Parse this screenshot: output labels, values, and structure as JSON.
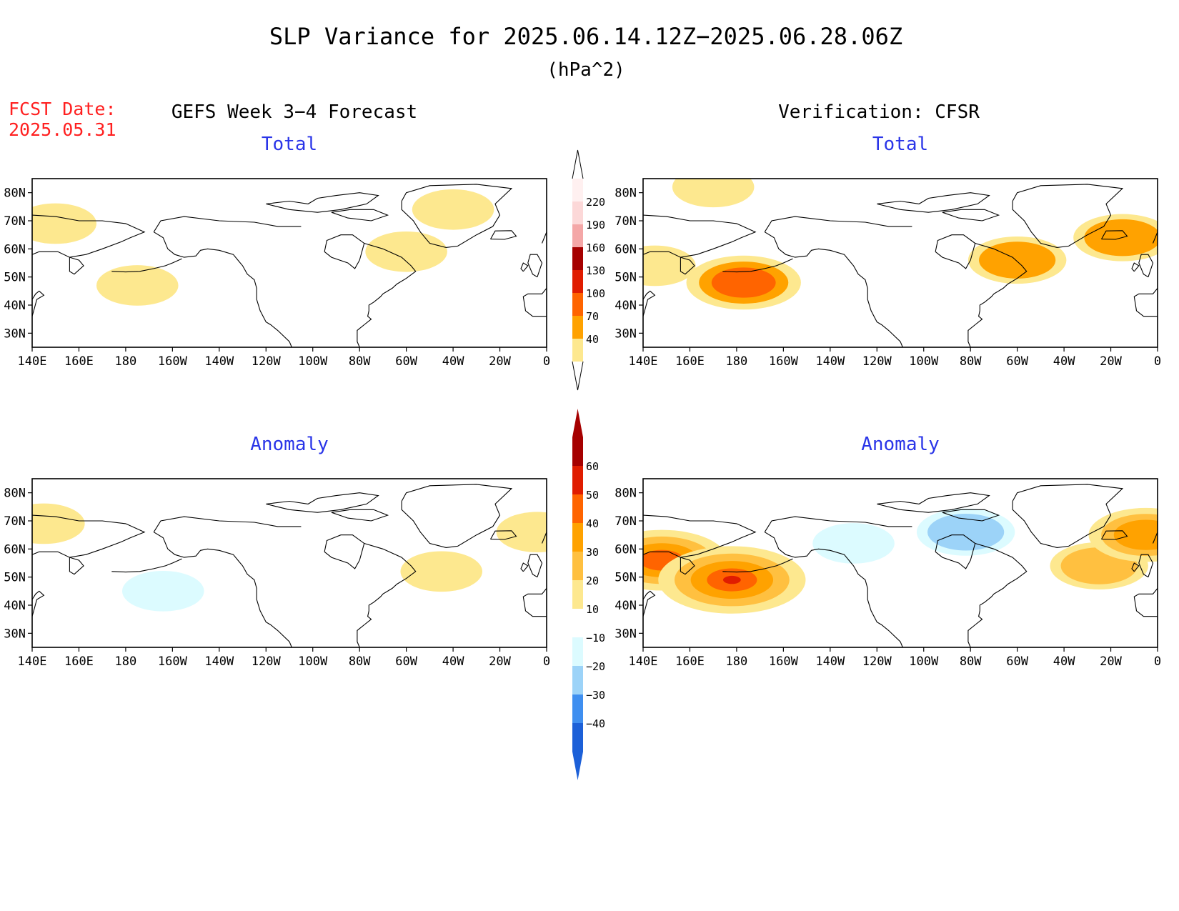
{
  "header": {
    "title": "SLP Variance for 2025.06.14.12Z−2025.06.28.06Z",
    "units": "(hPa^2)",
    "fcst_label": "FCST Date:",
    "fcst_date": "2025.05.31",
    "left_column_title": "GEFS Week 3−4 Forecast",
    "right_column_title": "Verification: CFSR"
  },
  "colors": {
    "title_text": "#000000",
    "fcst_text": "#ff2020",
    "panel_label_text": "#2a35e8",
    "coastline": "#000000"
  },
  "panels": [
    {
      "id": "forecast-total",
      "label": "Total",
      "kind": "total",
      "row": 0,
      "col": 0
    },
    {
      "id": "verification-total",
      "label": "Total",
      "kind": "total",
      "row": 0,
      "col": 1
    },
    {
      "id": "forecast-anomaly",
      "label": "Anomaly",
      "kind": "anomaly",
      "row": 1,
      "col": 0
    },
    {
      "id": "verification-anomaly",
      "label": "Anomaly",
      "kind": "anomaly",
      "row": 1,
      "col": 1
    }
  ],
  "axes": {
    "lon_ticks": [
      "140E",
      "160E",
      "180",
      "160W",
      "140W",
      "120W",
      "100W",
      "80W",
      "60W",
      "40W",
      "20W",
      "0"
    ],
    "lat_ticks": [
      "80N",
      "70N",
      "60N",
      "50N",
      "40N",
      "30N"
    ],
    "lon_range_deg_east": [
      140,
      360
    ],
    "lat_range_deg": [
      25,
      85
    ]
  },
  "colorbars": {
    "total": {
      "labels": [
        "40",
        "70",
        "100",
        "130",
        "160",
        "190",
        "220"
      ],
      "colors": [
        "#fde88f",
        "#ffa200",
        "#ff6400",
        "#e01c00",
        "#a60000",
        "#f4a7a7",
        "#fcd8d8",
        "#fff0f0"
      ]
    },
    "anomaly": {
      "labels": [
        "60",
        "50",
        "40",
        "30",
        "20",
        "10",
        "−10",
        "−20",
        "−30",
        "−40"
      ],
      "colors": [
        "#a60000",
        "#e01c00",
        "#ff6400",
        "#ffa200",
        "#ffc040",
        "#fde88f",
        "#ffffff",
        "#dcfbff",
        "#9cd3f8",
        "#3f8ff0",
        "#1c60d8"
      ]
    }
  },
  "fields": {
    "forecast-total": [
      {
        "region": "Chukotka",
        "lon": 150,
        "lat": 69,
        "level": 1
      },
      {
        "region": "North Pacific band",
        "lon": 185,
        "lat": 47,
        "level": 1
      },
      {
        "region": "Hudson Bay to North Atlantic band",
        "lon": 300,
        "lat": 59,
        "level": 1
      },
      {
        "region": "Greenland interior",
        "lon": 320,
        "lat": 74,
        "level": 1
      }
    ],
    "verification-total": [
      {
        "region": "Arctic Ocean north of Siberia",
        "lon": 170,
        "lat": 82,
        "level": 1
      },
      {
        "region": "Sea of Okhotsk",
        "lon": 145,
        "lat": 54,
        "level": 1
      },
      {
        "region": "Aleutian low",
        "lon": 183,
        "lat": 48,
        "level": 3
      },
      {
        "region": "Hudson Bay to North Atlantic band",
        "lon": 300,
        "lat": 56,
        "level": 2
      },
      {
        "region": "Iceland",
        "lon": 345,
        "lat": 64,
        "level": 2
      }
    ],
    "forecast-anomaly": [
      {
        "region": "Central North Pacific",
        "lon": 196,
        "lat": 45,
        "level": -1
      },
      {
        "region": "Chukotka",
        "lon": 145,
        "lat": 69,
        "level": 1
      },
      {
        "region": "Labrador Sea",
        "lon": 315,
        "lat": 52,
        "level": 1
      },
      {
        "region": "Eastern North Atlantic",
        "lon": 356,
        "lat": 66,
        "level": 1
      }
    ],
    "verification-anomaly": [
      {
        "region": "Sea of Okhotsk",
        "lon": 148,
        "lat": 56,
        "level": 4
      },
      {
        "region": "Aleutian low",
        "lon": 178,
        "lat": 49,
        "level": 5
      },
      {
        "region": "Hudson Bay",
        "lon": 278,
        "lat": 66,
        "level": -2
      },
      {
        "region": "Arctic Canada to Alaska",
        "lon": 230,
        "lat": 62,
        "level": -1
      },
      {
        "region": "North Atlantic",
        "lon": 335,
        "lat": 54,
        "level": 2
      },
      {
        "region": "Eastern Atlantic",
        "lon": 355,
        "lat": 65,
        "level": 3
      }
    ]
  }
}
